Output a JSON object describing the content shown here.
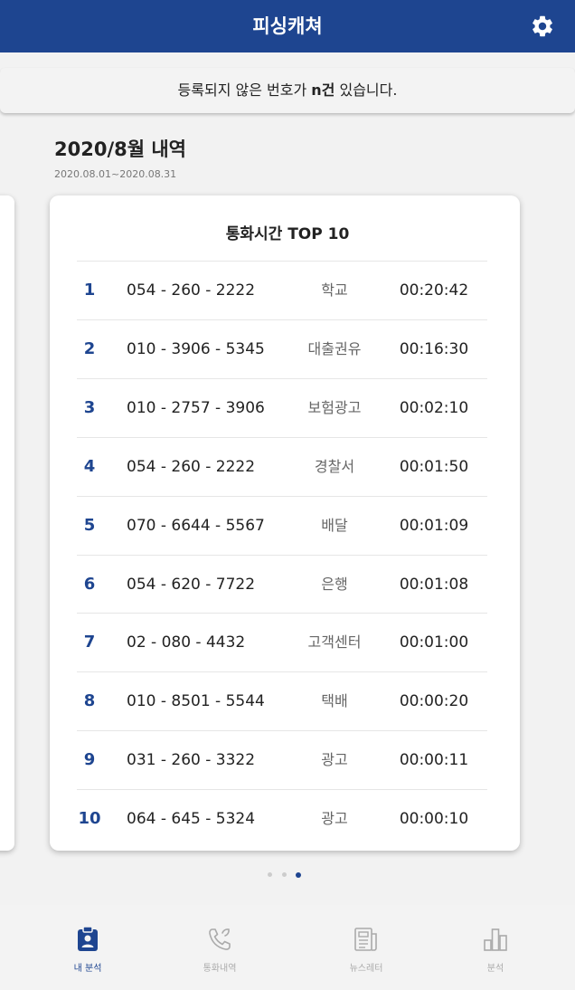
{
  "app": {
    "title": "피싱캐쳐"
  },
  "notice": {
    "prefix": "등록되지 않은 번호가 ",
    "count": "n건",
    "suffix": " 있습니다."
  },
  "summary": {
    "month_title": "2020/8월 내역",
    "date_range": "2020.08.01~2020.08.31"
  },
  "card": {
    "title": "통화시간 TOP 10",
    "rows": [
      {
        "rank": "1",
        "phone": "054 - 260 - 2222",
        "label": "학교",
        "duration": "00:20:42"
      },
      {
        "rank": "2",
        "phone": "010 - 3906 - 5345",
        "label": "대출권유",
        "duration": "00:16:30"
      },
      {
        "rank": "3",
        "phone": "010 - 2757 - 3906",
        "label": "보험광고",
        "duration": "00:02:10"
      },
      {
        "rank": "4",
        "phone": "054 - 260 - 2222",
        "label": "경찰서",
        "duration": "00:01:50"
      },
      {
        "rank": "5",
        "phone": "070 - 6644 - 5567",
        "label": "배달",
        "duration": "00:01:09"
      },
      {
        "rank": "6",
        "phone": "054 - 620 - 7722",
        "label": "은행",
        "duration": "00:01:08"
      },
      {
        "rank": "7",
        "phone": "02 - 080 - 4432",
        "label": "고객센터",
        "duration": "00:01:00"
      },
      {
        "rank": "8",
        "phone": "010 - 8501 - 5544",
        "label": "택배",
        "duration": "00:00:20"
      },
      {
        "rank": "9",
        "phone": "031 - 260 - 3322",
        "label": "광고",
        "duration": "00:00:11"
      },
      {
        "rank": "10",
        "phone": "064 - 645 - 5324",
        "label": "광고",
        "duration": "00:00:10"
      }
    ]
  },
  "pager": {
    "total": 3,
    "active_index": 2
  },
  "nav": {
    "items": [
      {
        "label": "내 분석",
        "icon": "my-analysis-icon",
        "active": true
      },
      {
        "label": "통화내역",
        "icon": "call-history-icon",
        "active": false
      },
      {
        "label": "뉴스레터",
        "icon": "newsletter-icon",
        "active": false
      },
      {
        "label": "분석",
        "icon": "bar-chart-icon",
        "active": false
      }
    ]
  },
  "colors": {
    "primary": "#1e4590",
    "inactive": "#aaaaaa",
    "background": "#f2f2f2"
  }
}
